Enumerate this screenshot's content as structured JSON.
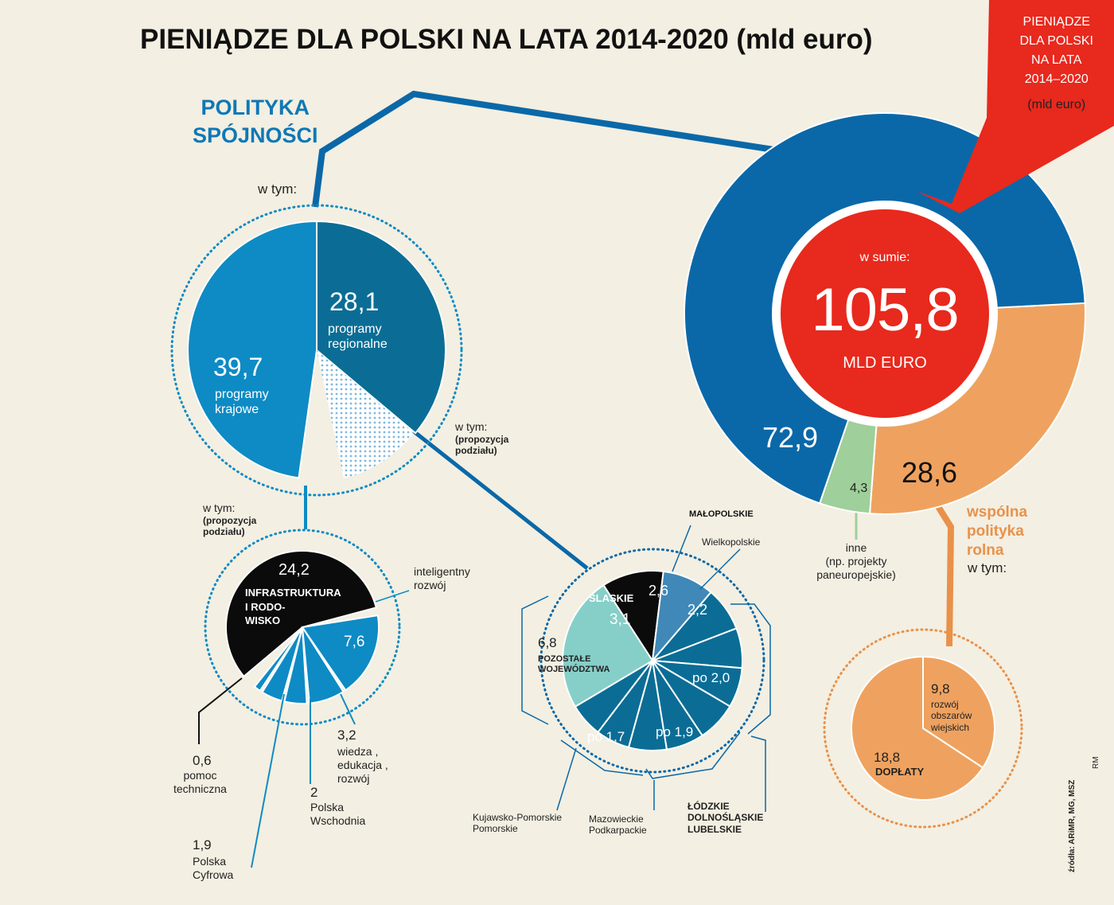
{
  "title": "PIENIĄDZE DLA POLSKI NA LATA 2014-2020 (mld euro)",
  "ribbon": {
    "lines": [
      "PIENIĄDZE",
      "DLA POLSKI",
      "NA LATA",
      "2014–2020"
    ],
    "unit": "(mld euro)"
  },
  "total": {
    "prefix": "w sumie:",
    "value": "105,8",
    "unit": "MLD EURO"
  },
  "cohesion": {
    "heading_1": "POLITYKA",
    "heading_2": "SPÓJNOŚCI",
    "w_tym": "w tym:"
  },
  "cap": {
    "heading_1": "wspólna",
    "heading_2": "polityka",
    "heading_3": "rolna",
    "w_tym": "w tym:"
  },
  "other": {
    "line_1": "inne",
    "line_2": "(np. projekty",
    "line_3": "paneuropejskie)"
  },
  "split_note": {
    "line_1": "w tym:",
    "line_2": "(propozycja",
    "line_3": "podziału)"
  },
  "national": {
    "value": "24,2",
    "name_1": "INFRASTRUKTURA",
    "name_2": "I RODO-",
    "name_3": "WISKO",
    "smart_value": "7,6",
    "smart_1": "inteligentny",
    "smart_2": "rozwój",
    "know_value": "3,2",
    "know_1": "wiedza ,",
    "know_2": "edukacja ,",
    "know_3": "rozwój",
    "east_value": "2",
    "east_1": "Polska",
    "east_2": "Wschodnia",
    "digital_value": "1,9",
    "digital_1": "Polska",
    "digital_2": "Cyfrowa",
    "tech_value": "0,6",
    "tech_1": "pomoc",
    "tech_2": "techniczna"
  },
  "regional": {
    "slaskie": "SLASKIE",
    "slaskie_value": "3,1",
    "malopolskie": "MAŁOPOLSKIE",
    "malopolskie_value": "2,6",
    "wielkopolskie": "Wielkopolskie",
    "wielkopolskie_value": "2,2",
    "po_20": "po 2,0",
    "po_19": "po 1,9",
    "po_17": "po 1,7",
    "rest_value": "6,8",
    "rest_1": "POZOSTAŁE",
    "rest_2": "WOJEWÓDZTWA",
    "kp_1": "Kujawsko-Pomorskie",
    "kp_2": "Pomorskie",
    "mp_1": "Mazowieckie",
    "mp_2": "Podkarpackie",
    "ldl_1": "ŁÓDZKIE",
    "ldl_2": "DOLNOŚLĄSKIE",
    "ldl_3": "LUBELSKIE"
  },
  "agri": {
    "rd_value": "9,8",
    "rd_1": "rozwój",
    "rd_2": "obszarów",
    "rd_3": "wiejskich",
    "pay_value": "18,8",
    "pay_label": "DOPŁATY"
  },
  "source": "źródła: ARiMR, MG, MSZ",
  "credit": "RM",
  "colors": {
    "blue_dark": "#0a68a8",
    "blue_mid": "#0e8bc4",
    "teal": "#0b6d95",
    "orange": "#efa25f",
    "red": "#e8291d",
    "green": "#9fcf9a",
    "mint": "#86cfc8",
    "black": "#0b0b0b",
    "bg": "#f3efe2"
  },
  "chart_data": [
    {
      "type": "pie",
      "title": "PIENIĄDZE DLA POLSKI NA LATA 2014-2020 (mld euro)",
      "total": 105.8,
      "categories": [
        "POLITYKA SPÓJNOŚCI",
        "inne (np. projekty paneuropejskie)",
        "wspólna polityka rolna"
      ],
      "values": [
        72.9,
        4.3,
        28.6
      ]
    },
    {
      "type": "pie",
      "parent": "POLITYKA SPÓJNOŚCI",
      "categories": [
        "programy regionalne",
        "programy krajowe"
      ],
      "values": [
        28.1,
        39.7
      ]
    },
    {
      "type": "pie",
      "parent": "programy krajowe",
      "categories": [
        "INFRASTRUKTURA I RODOWISKO",
        "inteligentny rozwój",
        "wiedza, edukacja, rozwój",
        "Polska Wschodnia",
        "Polska Cyfrowa",
        "pomoc techniczna"
      ],
      "values": [
        24.2,
        7.6,
        3.2,
        2,
        1.9,
        0.6
      ]
    },
    {
      "type": "pie",
      "parent": "programy regionalne",
      "categories": [
        "SLASKIE",
        "MAŁOPOLSKIE",
        "Wielkopolskie",
        "Łódzkie",
        "Dolnośląskie",
        "Lubelskie",
        "Mazowieckie",
        "Podkarpackie",
        "Kujawsko-Pomorskie",
        "Pomorskie",
        "POZOSTAŁE WOJEWÓDZTWA"
      ],
      "values": [
        3.1,
        2.6,
        2.2,
        2.0,
        2.0,
        2.0,
        1.9,
        1.9,
        1.7,
        1.7,
        6.8
      ]
    },
    {
      "type": "pie",
      "parent": "wspólna polityka rolna",
      "categories": [
        "rozwój obszarów wiejskich",
        "DOPŁATY"
      ],
      "values": [
        9.8,
        18.8
      ]
    }
  ]
}
